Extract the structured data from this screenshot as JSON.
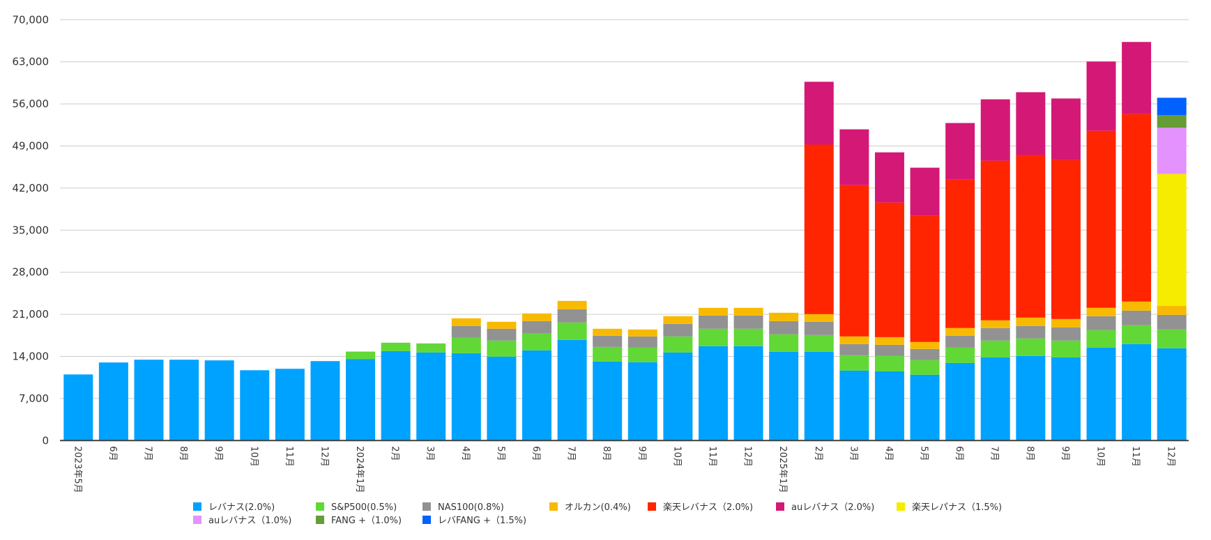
{
  "chart_data": {
    "type": "bar",
    "stacked": true,
    "title": "",
    "xlabel": "",
    "ylabel": "",
    "ylim": [
      0,
      70000
    ],
    "yticks": [
      "0",
      "7,000",
      "14,000",
      "21,000",
      "28,000",
      "35,000",
      "42,000",
      "49,000",
      "56,000",
      "63,000",
      "70,000"
    ],
    "ytick_values": [
      0,
      7000,
      14000,
      21000,
      28000,
      35000,
      42000,
      49000,
      56000,
      63000,
      70000
    ],
    "grid": true,
    "legend_position": "bottom",
    "categories": [
      "2023年5月",
      "6月",
      "7月",
      "8月",
      "9月",
      "10月",
      "11月",
      "12月",
      "2024年1月",
      "2月",
      "3月",
      "4月",
      "5月",
      "6月",
      "7月",
      "8月",
      "9月",
      "10月",
      "11月",
      "12月",
      "2025年1月",
      "2月",
      "3月",
      "4月",
      "5月",
      "6月",
      "7月",
      "8月",
      "9月",
      "10月",
      "11月",
      "12月"
    ],
    "series": [
      {
        "name": "レバナス(2.0%)",
        "color": "#00A2FF",
        "values": [
          11000,
          12990,
          13450,
          13450,
          13340,
          11700,
          11940,
          13220,
          13540,
          14880,
          14650,
          14540,
          13960,
          15000,
          16740,
          13140,
          13030,
          14650,
          15700,
          15700,
          14770,
          14770,
          11640,
          11520,
          10940,
          12910,
          13840,
          14070,
          13840,
          15460,
          16050,
          15350
        ]
      },
      {
        "name": "S&P500(0.5%)",
        "color": "#61D836",
        "values": [
          0,
          0,
          0,
          0,
          0,
          0,
          0,
          0,
          1260,
          1400,
          1510,
          2550,
          2670,
          2790,
          2900,
          2440,
          2430,
          2670,
          2900,
          2900,
          2900,
          2780,
          2550,
          2550,
          2440,
          2550,
          2790,
          2910,
          2790,
          2900,
          3130,
          3130
        ]
      },
      {
        "name": "NAS100(0.8%)",
        "color": "#929292",
        "values": [
          0,
          0,
          0,
          0,
          0,
          0,
          0,
          0,
          0,
          0,
          0,
          1970,
          1970,
          2090,
          2200,
          1860,
          1860,
          2090,
          2200,
          2200,
          2200,
          2210,
          1860,
          1860,
          1860,
          1980,
          2090,
          2080,
          2210,
          2320,
          2430,
          2430
        ]
      },
      {
        "name": "オルカン(0.4%)",
        "color": "#F8BA00",
        "values": [
          0,
          0,
          0,
          0,
          0,
          0,
          0,
          0,
          0,
          0,
          0,
          1280,
          1160,
          1270,
          1390,
          1160,
          1160,
          1280,
          1280,
          1280,
          1390,
          1270,
          1270,
          1270,
          1160,
          1280,
          1280,
          1390,
          1380,
          1400,
          1510,
          1510
        ]
      },
      {
        "name": "楽天レバナス（2.0%)",
        "color": "#FF2500",
        "values": [
          0,
          0,
          0,
          0,
          0,
          0,
          0,
          0,
          0,
          0,
          0,
          0,
          0,
          0,
          0,
          0,
          0,
          0,
          0,
          0,
          0,
          28200,
          25170,
          22390,
          20990,
          24700,
          26550,
          27040,
          26450,
          29450,
          31200,
          0
        ]
      },
      {
        "name": "auレバナス（2.0%)",
        "color": "#D41876",
        "values": [
          0,
          0,
          0,
          0,
          0,
          0,
          0,
          0,
          0,
          0,
          0,
          0,
          0,
          0,
          0,
          0,
          0,
          0,
          0,
          0,
          0,
          10450,
          9280,
          8350,
          8000,
          9400,
          10210,
          10450,
          10230,
          11520,
          11980,
          0
        ]
      },
      {
        "name": "楽天レパナス（1.5%)",
        "color": "#F5EC00",
        "values": [
          0,
          0,
          0,
          0,
          0,
          0,
          0,
          0,
          0,
          0,
          0,
          0,
          0,
          0,
          0,
          0,
          0,
          0,
          0,
          0,
          0,
          0,
          0,
          0,
          0,
          0,
          0,
          0,
          0,
          0,
          0,
          21930
        ]
      },
      {
        "name": "auレバナス（1.0%)",
        "color": "#E392FE",
        "values": [
          0,
          0,
          0,
          0,
          0,
          0,
          0,
          0,
          0,
          0,
          0,
          0,
          0,
          0,
          0,
          0,
          0,
          0,
          0,
          0,
          0,
          0,
          0,
          0,
          0,
          0,
          0,
          0,
          0,
          0,
          0,
          7680
        ]
      },
      {
        "name": "FANG +（1.0%)",
        "color": "#669C35",
        "values": [
          0,
          0,
          0,
          0,
          0,
          0,
          0,
          0,
          0,
          0,
          0,
          0,
          0,
          0,
          0,
          0,
          0,
          0,
          0,
          0,
          0,
          0,
          0,
          0,
          0,
          0,
          0,
          0,
          0,
          0,
          0,
          2090
        ]
      },
      {
        "name": "レバFANG +（1.5%)",
        "color": "#0061FE",
        "values": [
          0,
          0,
          0,
          0,
          0,
          0,
          0,
          0,
          0,
          0,
          0,
          0,
          0,
          0,
          0,
          0,
          0,
          0,
          0,
          0,
          0,
          0,
          0,
          0,
          0,
          0,
          0,
          0,
          0,
          0,
          0,
          2900
        ]
      }
    ],
    "legend_order": [
      [
        "レバナス(2.0%)",
        "S&P500(0.5%)",
        "NAS100(0.8%)",
        "オルカン(0.4%)",
        "楽天レバナス（2.0%)",
        "auレバナス（2.0%)",
        "楽天レパナス（1.5%)"
      ],
      [
        "auレバナス（1.0%)",
        "FANG +（1.0%)",
        "レバFANG +（1.5%)"
      ]
    ],
    "colors": {
      "gridline": "#CCCCCC",
      "axis": "#404040",
      "text": "#333333"
    }
  }
}
